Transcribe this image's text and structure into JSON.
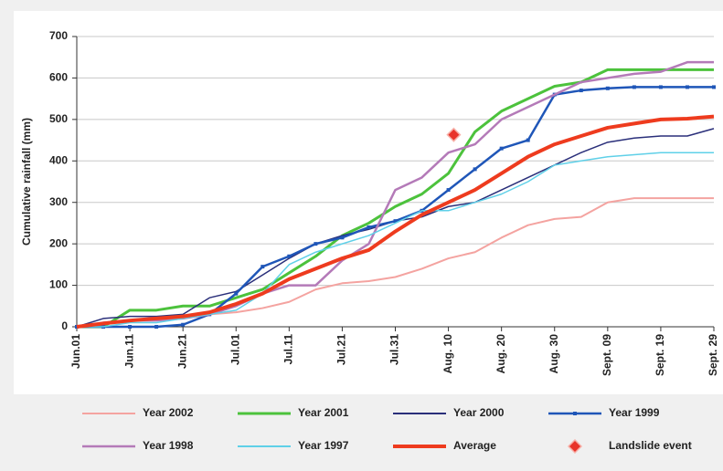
{
  "chart_data": {
    "type": "line",
    "y_label": "Cumulative rainfall (mm)",
    "x": [
      0,
      5,
      10,
      15,
      20,
      25,
      30,
      35,
      40,
      45,
      50,
      55,
      60,
      65,
      70,
      75,
      80,
      85,
      90,
      95,
      100,
      105,
      110,
      115,
      120
    ],
    "xlim": [
      0,
      120
    ],
    "xticks": [
      {
        "value": 0,
        "label": "Jun.01"
      },
      {
        "value": 10,
        "label": "Jun.11"
      },
      {
        "value": 20,
        "label": "Jun.21"
      },
      {
        "value": 30,
        "label": "Jul.01"
      },
      {
        "value": 40,
        "label": "Jul.11"
      },
      {
        "value": 50,
        "label": "Jul.21"
      },
      {
        "value": 60,
        "label": "Jul.31"
      },
      {
        "value": 70,
        "label": "Aug. 10"
      },
      {
        "value": 80,
        "label": "Aug. 20"
      },
      {
        "value": 90,
        "label": "Aug. 30"
      },
      {
        "value": 100,
        "label": "Sept. 09"
      },
      {
        "value": 110,
        "label": "Sept. 19"
      },
      {
        "value": 120,
        "label": "Sept. 29"
      }
    ],
    "ylim": [
      0,
      700
    ],
    "yticks": [
      0,
      100,
      200,
      300,
      400,
      500,
      600,
      700
    ],
    "grid": true,
    "legend": "bottom",
    "series": [
      {
        "name": "Year 2002",
        "color": "#f4a3a0",
        "width": 2,
        "values": [
          0,
          10,
          15,
          20,
          25,
          30,
          35,
          45,
          60,
          90,
          105,
          110,
          120,
          140,
          165,
          180,
          215,
          245,
          260,
          265,
          300,
          310,
          310,
          310,
          310
        ]
      },
      {
        "name": "Year 2001",
        "color": "#4cc23c",
        "width": 3,
        "values": [
          0,
          0,
          40,
          40,
          50,
          50,
          70,
          90,
          130,
          170,
          220,
          250,
          290,
          320,
          370,
          470,
          520,
          550,
          580,
          590,
          620,
          620,
          620,
          620,
          620
        ]
      },
      {
        "name": "Year 2000",
        "color": "#2a2f7a",
        "width": 1.5,
        "values": [
          0,
          20,
          25,
          25,
          30,
          70,
          85,
          125,
          165,
          200,
          220,
          235,
          255,
          265,
          290,
          300,
          330,
          360,
          390,
          420,
          445,
          455,
          460,
          460,
          478
        ]
      },
      {
        "name": "Year 1999",
        "color": "#1f56b8",
        "width": 2.5,
        "marker": "square",
        "values": [
          0,
          0,
          0,
          0,
          5,
          30,
          80,
          145,
          170,
          200,
          215,
          240,
          255,
          280,
          330,
          380,
          430,
          450,
          560,
          570,
          575,
          578,
          578,
          578,
          578
        ]
      },
      {
        "name": "Year 1998",
        "color": "#b47ab8",
        "width": 2.5,
        "values": [
          0,
          10,
          15,
          15,
          20,
          30,
          50,
          80,
          100,
          100,
          160,
          200,
          330,
          360,
          420,
          440,
          500,
          530,
          560,
          590,
          600,
          610,
          615,
          638,
          638
        ]
      },
      {
        "name": "Year 1997",
        "color": "#5fd0e8",
        "width": 1.5,
        "values": [
          0,
          0,
          10,
          10,
          20,
          30,
          40,
          80,
          150,
          180,
          200,
          220,
          250,
          280,
          280,
          300,
          320,
          350,
          390,
          400,
          410,
          415,
          420,
          420,
          420
        ]
      },
      {
        "name": "Average",
        "color": "#ee3b1e",
        "width": 4,
        "values": [
          0,
          8,
          15,
          20,
          25,
          35,
          55,
          80,
          115,
          140,
          165,
          185,
          230,
          270,
          300,
          330,
          370,
          410,
          440,
          460,
          480,
          490,
          500,
          502,
          507
        ]
      },
      {
        "name": "Landslide event",
        "color": "#e8342a",
        "line": false,
        "marker": "diamond",
        "x": [
          71
        ],
        "values": [
          463
        ]
      }
    ]
  }
}
